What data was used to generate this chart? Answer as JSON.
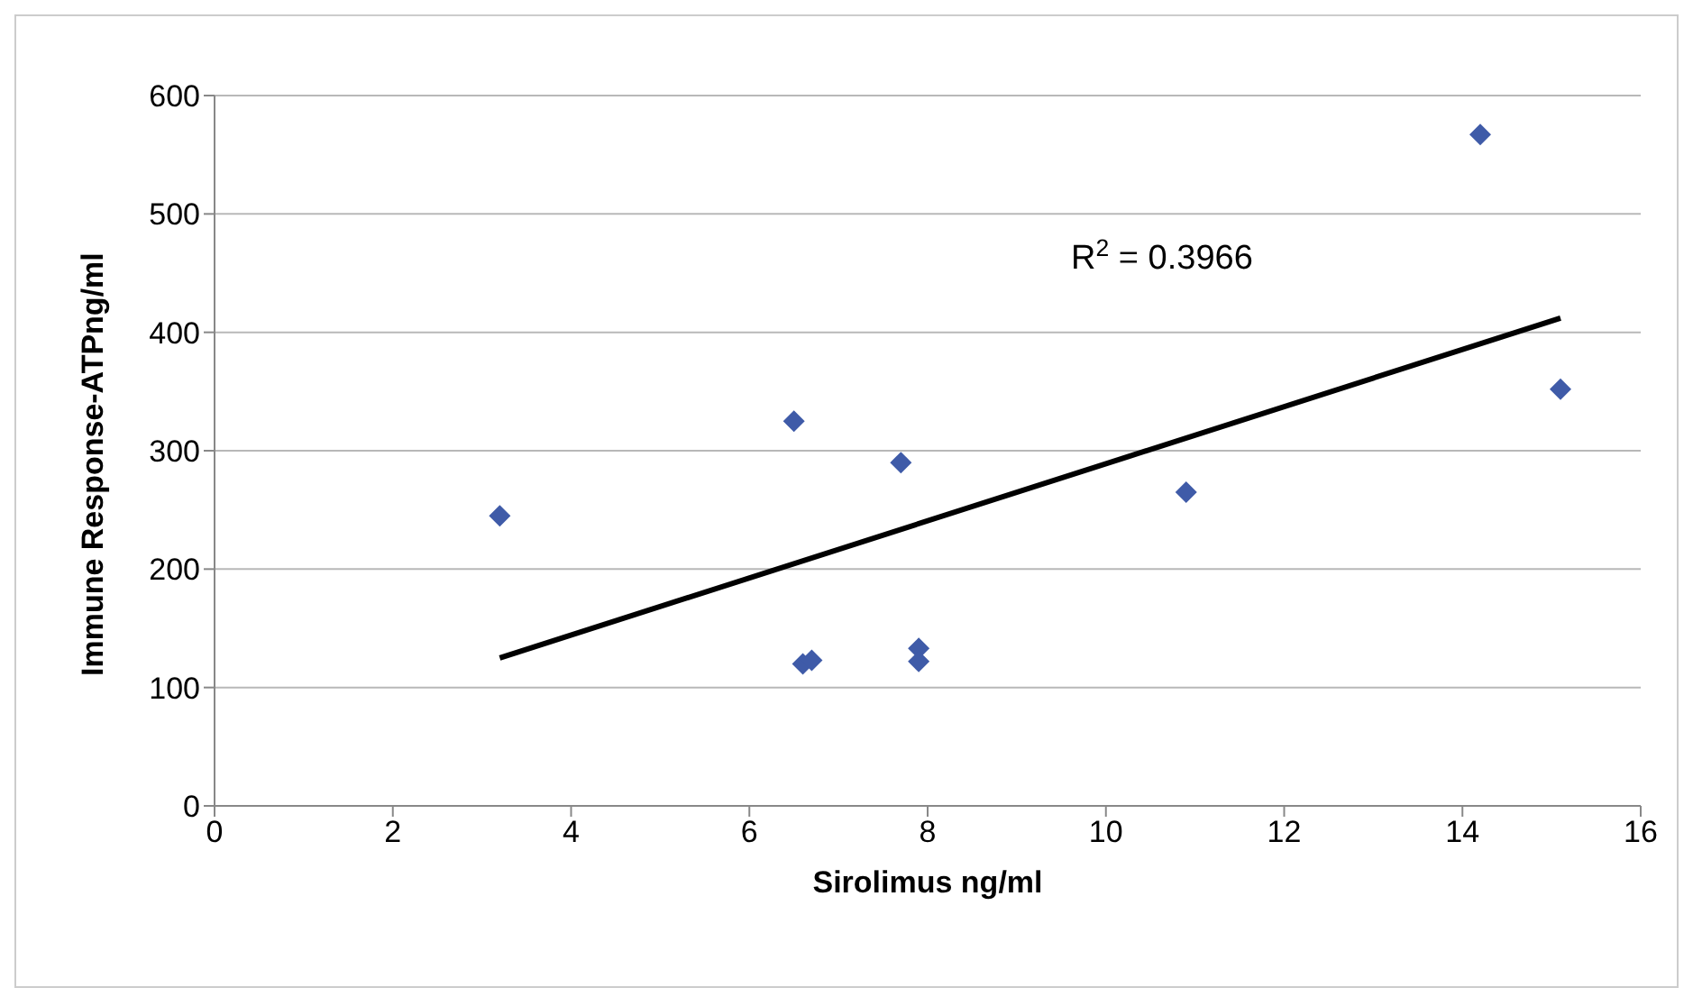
{
  "chart_data": {
    "type": "scatter",
    "xlabel": "Sirolimus ng/ml",
    "ylabel": "Immune Response-ATPng/ml",
    "xlim": [
      0,
      16
    ],
    "xticks": [
      0,
      2,
      4,
      6,
      8,
      10,
      12,
      14,
      16
    ],
    "ylim": [
      0,
      600
    ],
    "yticks": [
      0,
      100,
      200,
      300,
      400,
      500,
      600
    ],
    "grid": "y",
    "legend": false,
    "series": [
      {
        "marker": "diamond",
        "color": "#3f5ba8",
        "x": [
          3.2,
          6.5,
          6.6,
          6.7,
          7.7,
          7.9,
          7.9,
          10.9,
          14.2,
          15.1
        ],
        "values": [
          245,
          325,
          120,
          123,
          290,
          133,
          122,
          265,
          567,
          352
        ]
      },
      {
        "type": "line",
        "marker": "none",
        "color": "#000000",
        "x": [
          3.2,
          15.1
        ],
        "values": [
          125,
          412
        ]
      }
    ],
    "annotations": [
      "R$^{2}$ = 0.3966"
    ]
  }
}
